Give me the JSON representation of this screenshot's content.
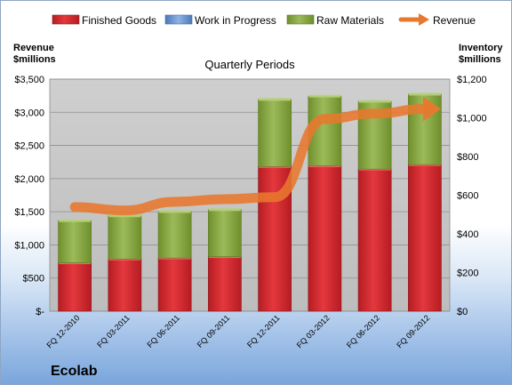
{
  "company": "Ecolab",
  "chart_data": {
    "type": "bar",
    "subtype": "stacked bar with line on secondary axis",
    "title": "Quarterly Periods",
    "categories": [
      "FQ 12-2010",
      "FQ 03-2011",
      "FQ 06-2011",
      "FQ 09-2011",
      "FQ 12-2011",
      "FQ 03-2012",
      "FQ 06-2012",
      "FQ 09-2012"
    ],
    "y_left": {
      "label_lines": [
        "Revenue",
        "$millions"
      ],
      "range": [
        0,
        3500
      ],
      "ticks": [
        0,
        500,
        1000,
        1500,
        2000,
        2500,
        3000,
        3500
      ],
      "tick_labels": [
        "$-",
        "$500",
        "$1,000",
        "$1,500",
        "$2,000",
        "$2,500",
        "$3,000",
        "$3,500"
      ]
    },
    "y_right": {
      "label_lines": [
        "Inventory",
        "$millions"
      ],
      "range": [
        0,
        1200
      ],
      "ticks": [
        0,
        200,
        400,
        600,
        800,
        1000,
        1200
      ],
      "tick_labels": [
        "$0",
        "$200",
        "$400",
        "$600",
        "$800",
        "$1,000",
        "$1,200"
      ]
    },
    "bar_series": [
      {
        "name": "Finished Goods",
        "color": "#d9282e",
        "axis": "right",
        "values": [
          250,
          270,
          275,
          282,
          748,
          752,
          735,
          758
        ]
      },
      {
        "name": "Work in Progress",
        "color": "#6f9bd8",
        "axis": "right",
        "values": [
          0,
          0,
          0,
          0,
          0,
          0,
          0,
          0
        ]
      },
      {
        "name": "Raw Materials",
        "color": "#93b53f",
        "axis": "right",
        "values": [
          218,
          223,
          240,
          243,
          347,
          360,
          350,
          364
        ]
      }
    ],
    "line_series": [
      {
        "name": "Revenue",
        "color": "#e8782e",
        "axis": "left",
        "values": [
          1570,
          1520,
          1650,
          1690,
          1720,
          2900,
          2980,
          3050
        ]
      }
    ],
    "grid": true,
    "legend_position": "top"
  }
}
